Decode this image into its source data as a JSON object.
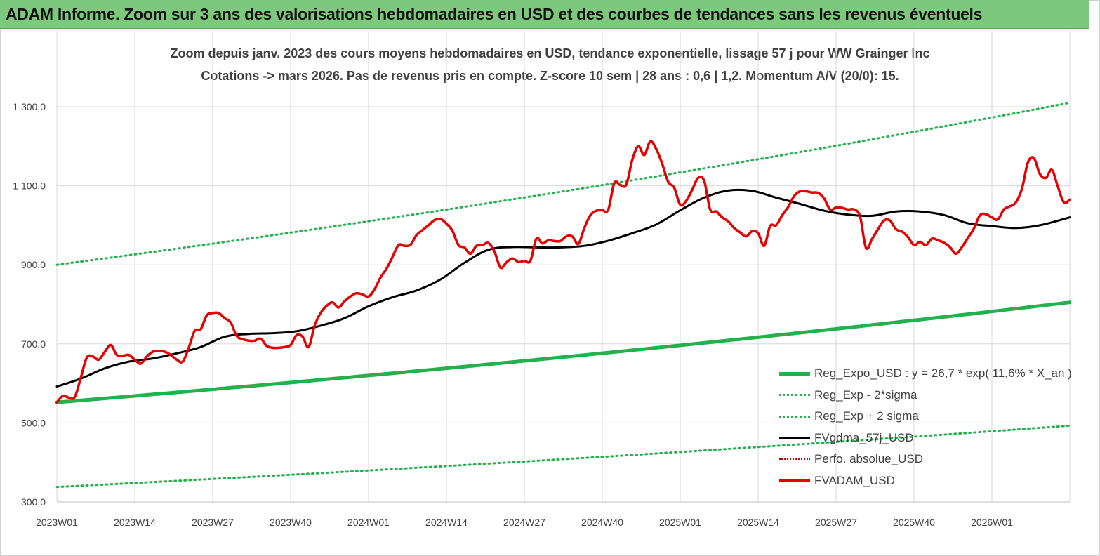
{
  "banner": {
    "title": "ADAM Informe. Zoom sur 3 ans des valorisations hebdomadaires en USD et des courbes de tendances sans les revenus éventuels"
  },
  "chart_data": {
    "type": "line",
    "title_line1": "Zoom depuis janv. 2023 des cours moyens hebdomadaires en USD, tendance exponentielle, lissage 57 j pour WW Grainger Inc",
    "title_line2": "Cotations -> mars 2026. Pas de revenus pris en compte. Z-score 10 sem  | 28 ans : 0,6 | 1,2. Momentum A/V (20/0): 15.",
    "x_tick_labels": [
      "2023W01",
      "2023W14",
      "2023W27",
      "2023W40",
      "2024W01",
      "2024W14",
      "2024W27",
      "2024W40",
      "2025W01",
      "2025W14",
      "2025W27",
      "2025W40",
      "2026W01"
    ],
    "y_tick_labels": [
      "300,0",
      "500,0",
      "700,0",
      "900,0",
      "1 100,0",
      "1 300,0"
    ],
    "ylim": [
      300,
      1400
    ],
    "n_weeks": 170,
    "grid": true,
    "legend_position": "bottom-right",
    "colors": {
      "expo": "#22b14c",
      "band": "#22b14c",
      "smooth": "#000000",
      "perf": "#cc0000",
      "price": "#e60000"
    },
    "series": [
      {
        "key": "expo",
        "name": "Reg_Expo_USD : y =  26,7 * exp( 11,6% *  X_an )",
        "style": "solid",
        "x": [
          0,
          169
        ],
        "values": [
          552,
          805
        ]
      },
      {
        "key": "minus2",
        "name": "Reg_Exp - 2*sigma",
        "style": "dotted",
        "x": [
          0,
          169
        ],
        "values": [
          338,
          493
        ]
      },
      {
        "key": "plus2",
        "name": "Reg_Exp + 2 sigma",
        "style": "dotted",
        "x": [
          0,
          169
        ],
        "values": [
          900,
          1310
        ]
      },
      {
        "key": "smooth",
        "name": "FVgdma_57j_USD",
        "style": "solid",
        "x": [
          0,
          4,
          8,
          12,
          16,
          20,
          24,
          28,
          32,
          36,
          40,
          44,
          48,
          52,
          56,
          60,
          64,
          68,
          72,
          76,
          80,
          84,
          88,
          92,
          96,
          100,
          104,
          108,
          112,
          116,
          120,
          124,
          128,
          132,
          136,
          140,
          144,
          148,
          152,
          156,
          160,
          164,
          169
        ],
        "values": [
          592,
          612,
          638,
          655,
          663,
          676,
          692,
          718,
          725,
          727,
          732,
          746,
          765,
          795,
          818,
          835,
          863,
          905,
          938,
          945,
          944,
          944,
          948,
          961,
          980,
          1002,
          1038,
          1070,
          1088,
          1087,
          1070,
          1054,
          1037,
          1027,
          1024,
          1035,
          1035,
          1026,
          1005,
          998,
          993,
          1000,
          1020
        ]
      },
      {
        "key": "perf",
        "name": "Perfo. absolue_USD",
        "style": "dotted",
        "x": [],
        "values": []
      },
      {
        "key": "price",
        "name": "FVADAM_USD",
        "style": "solid",
        "x": [
          0,
          1,
          2,
          3,
          4,
          5,
          6,
          7,
          8,
          9,
          10,
          11,
          12,
          13,
          14,
          15,
          16,
          17,
          18,
          19,
          20,
          21,
          22,
          23,
          24,
          25,
          26,
          27,
          28,
          29,
          30,
          31,
          32,
          33,
          34,
          35,
          36,
          37,
          38,
          39,
          40,
          41,
          42,
          43,
          44,
          45,
          46,
          47,
          48,
          49,
          50,
          51,
          52,
          53,
          54,
          55,
          56,
          57,
          58,
          59,
          60,
          61,
          62,
          63,
          64,
          65,
          66,
          67,
          68,
          69,
          70,
          71,
          72,
          73,
          74,
          75,
          76,
          77,
          78,
          79,
          80,
          81,
          82,
          83,
          84,
          85,
          86,
          87,
          88,
          89,
          90,
          91,
          92,
          93,
          94,
          95,
          96,
          97,
          98,
          99,
          100,
          101,
          102,
          103,
          104,
          105,
          106,
          107,
          108,
          109,
          110,
          111,
          112,
          113,
          114,
          115,
          116,
          117,
          118,
          119,
          120,
          121,
          122,
          123,
          124,
          125,
          126,
          127,
          128,
          129,
          130,
          131,
          132,
          133,
          134,
          135,
          136,
          137,
          138,
          139,
          140,
          141,
          142,
          143,
          144,
          145,
          146,
          147,
          148,
          149,
          150,
          151,
          152,
          153,
          154,
          155,
          156,
          157,
          158,
          159,
          160,
          161,
          162,
          163,
          164,
          165,
          166,
          167,
          168,
          169
        ],
        "values": [
          552,
          568,
          564,
          566,
          615,
          665,
          668,
          660,
          680,
          697,
          672,
          670,
          672,
          660,
          650,
          668,
          680,
          682,
          680,
          672,
          660,
          655,
          690,
          733,
          737,
          772,
          778,
          778,
          765,
          754,
          720,
          712,
          708,
          708,
          713,
          695,
          690,
          690,
          692,
          697,
          722,
          718,
          692,
          746,
          778,
          796,
          805,
          792,
          808,
          820,
          828,
          825,
          820,
          838,
          868,
          890,
          920,
          950,
          948,
          951,
          975,
          988,
          1000,
          1013,
          1016,
          1004,
          986,
          950,
          944,
          928,
          948,
          950,
          955,
          934,
          893,
          906,
          916,
          907,
          910,
          910,
          966,
          954,
          962,
          960,
          960,
          972,
          972,
          953,
          993,
          1025,
          1037,
          1038,
          1040,
          1107,
          1102,
          1103,
          1165,
          1200,
          1178,
          1212,
          1193,
          1155,
          1110,
          1095,
          1052,
          1062,
          1090,
          1120,
          1112,
          1040,
          1035,
          1020,
          1010,
          993,
          982,
          972,
          985,
          980,
          948,
          998,
          1000,
          1025,
          1046,
          1074,
          1086,
          1086,
          1083,
          1082,
          1068,
          1040,
          1045,
          1044,
          1040,
          1040,
          1022,
          943,
          965,
          990,
          1012,
          1012,
          990,
          984,
          970,
          950,
          958,
          950,
          966,
          962,
          956,
          945,
          928,
          945,
          968,
          992,
          1025,
          1028,
          1020,
          1015,
          1040,
          1048,
          1058,
          1092,
          1158,
          1170,
          1130,
          1120,
          1140,
          1098,
          1058,
          1065
        ]
      }
    ]
  }
}
